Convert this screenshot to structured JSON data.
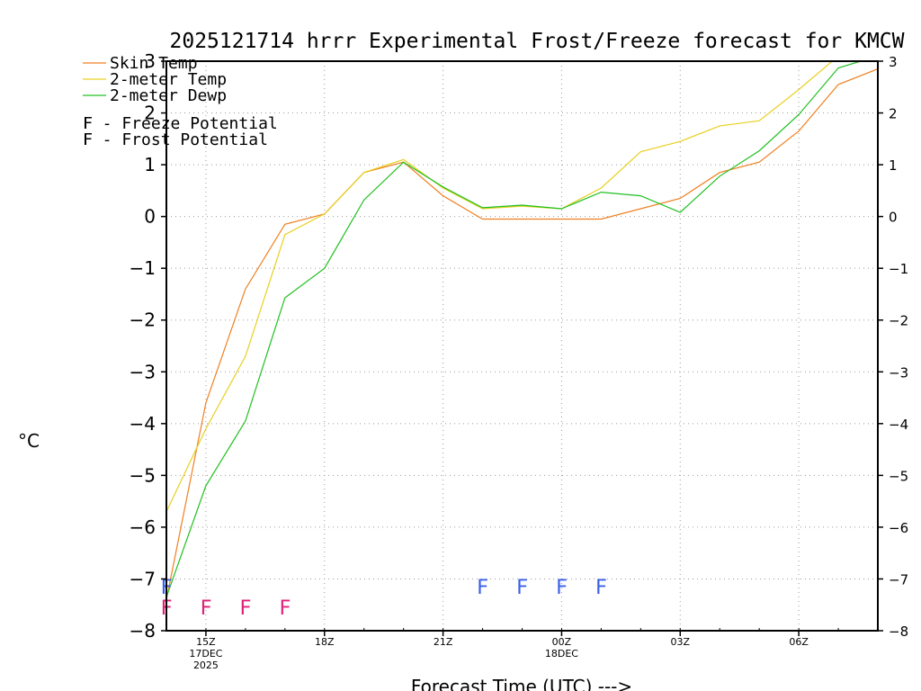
{
  "chart_data": {
    "type": "line",
    "title": "2025121714 hrrr Experimental Frost/Freeze forecast for KMCW",
    "xlabel": "Forecast Time (UTC) --->",
    "ylabel": "°C",
    "ylim": [
      -8,
      3
    ],
    "yticks": [
      3,
      2,
      1,
      0,
      -1,
      -2,
      -3,
      -4,
      -5,
      -6,
      -7,
      -8
    ],
    "xlim": [
      14,
      32
    ],
    "x": [
      14,
      15,
      16,
      17,
      18,
      19,
      20,
      21,
      22,
      23,
      24,
      25,
      26,
      27,
      28,
      29,
      30,
      31,
      32
    ],
    "xticks": [
      {
        "x": 15,
        "lines": [
          "15Z",
          "17DEC",
          "2025"
        ]
      },
      {
        "x": 18,
        "lines": [
          "18Z"
        ]
      },
      {
        "x": 21,
        "lines": [
          "21Z"
        ]
      },
      {
        "x": 24,
        "lines": [
          "00Z",
          "18DEC"
        ]
      },
      {
        "x": 27,
        "lines": [
          "03Z"
        ]
      },
      {
        "x": 30,
        "lines": [
          "06Z"
        ]
      }
    ],
    "grid": true,
    "series": [
      {
        "name": "Skin Temp",
        "color": "#f08020",
        "values": [
          -7.4,
          -3.6,
          -1.4,
          -0.15,
          0.05,
          0.85,
          1.05,
          0.4,
          -0.05,
          -0.05,
          -0.05,
          -0.05,
          0.15,
          0.35,
          0.85,
          1.05,
          1.65,
          2.55,
          2.85
        ]
      },
      {
        "name": "2-meter Temp",
        "color": "#e8d020",
        "values": [
          -5.7,
          -4.1,
          -2.7,
          -0.35,
          0.05,
          0.85,
          1.1,
          0.55,
          0.15,
          0.2,
          0.15,
          0.55,
          1.25,
          1.45,
          1.75,
          1.85,
          2.45,
          3.1,
          3.2
        ]
      },
      {
        "name": "2-meter Dewp",
        "color": "#20c020",
        "values": [
          -7.35,
          -5.2,
          -3.95,
          -1.57,
          -1.0,
          0.32,
          1.05,
          0.57,
          0.17,
          0.22,
          0.15,
          0.47,
          0.4,
          0.08,
          0.78,
          1.27,
          1.97,
          2.87,
          3.1
        ]
      }
    ],
    "freeze_potential": {
      "label": "F - Freeze Potential",
      "marker": "F",
      "color": "#e0207a",
      "y": -7.55,
      "x": [
        14,
        15,
        16,
        17
      ]
    },
    "frost_potential": {
      "label": "F - Frost Potential",
      "marker": "F",
      "color": "#3a60e8",
      "y": -7.15,
      "x": [
        14,
        22,
        23,
        24,
        25
      ]
    }
  }
}
